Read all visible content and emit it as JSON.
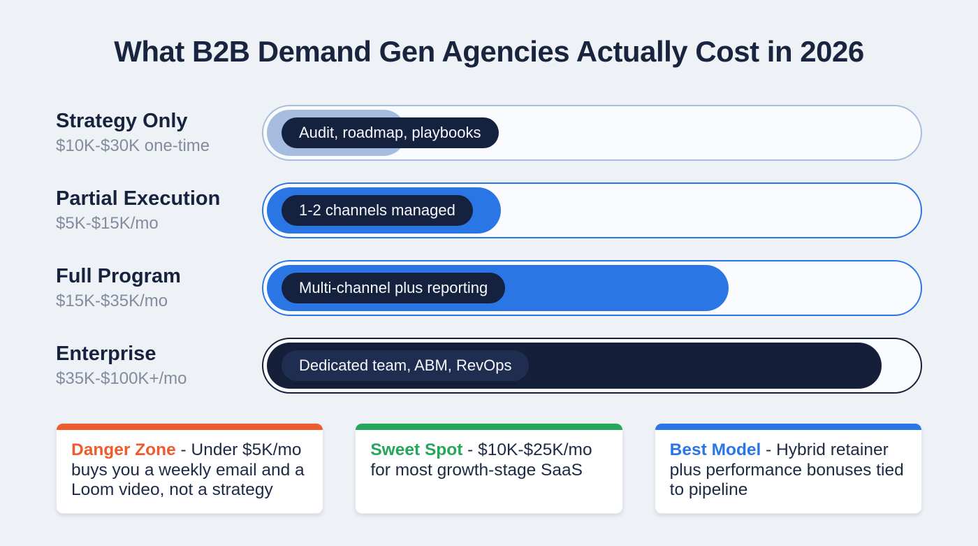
{
  "title": "What B2B Demand Gen Agencies Actually Cost in 2026",
  "chart_data": {
    "type": "bar",
    "orientation": "horizontal",
    "title": "What B2B Demand Gen Agencies Actually Cost in 2026",
    "categories": [
      "Strategy Only",
      "Partial Execution",
      "Full Program",
      "Enterprise"
    ],
    "price_ranges": [
      "$10K-$30K one-time",
      "$5K-$15K/mo",
      "$15K-$35K/mo",
      "$35K-$100K+/mo"
    ],
    "bar_labels": [
      "Audit, roadmap, playbooks",
      "1-2 channels managed",
      "Multi-channel plus reporting",
      "Dedicated team, ABM, RevOps"
    ],
    "values_pct_of_track": [
      21.5,
      36,
      71,
      94.5
    ],
    "grid": false,
    "legend": false
  },
  "rows": [
    {
      "name": "Strategy Only",
      "price": "$10K-$30K one-time",
      "tag": "Audit, roadmap, playbooks",
      "fill_pct": 21.5,
      "fill_color": "#a6bddf",
      "track_border": "#a8bddd",
      "pill_color": "#14223f"
    },
    {
      "name": "Partial Execution",
      "price": "$5K-$15K/mo",
      "tag": "1-2 channels managed",
      "fill_pct": 36,
      "fill_color": "#2b76e5",
      "track_border": "#2b76e5",
      "pill_color": "#14223f"
    },
    {
      "name": "Full Program",
      "price": "$15K-$35K/mo",
      "tag": "Multi-channel plus reporting",
      "fill_pct": 71,
      "fill_color": "#2b76e5",
      "track_border": "#2b76e5",
      "pill_color": "#14223f"
    },
    {
      "name": "Enterprise",
      "price": "$35K-$100K+/mo",
      "tag": "Dedicated team, ABM, RevOps",
      "fill_pct": 94.5,
      "fill_color": "#151f3a",
      "track_border": "#151f3a",
      "pill_color": "#1f2d50"
    }
  ],
  "cards": [
    {
      "keyword": "Danger Zone",
      "text": " - Under $5K/mo buys you a weekly email and a Loom video, not a strategy",
      "accent_color": "#ee5b2d"
    },
    {
      "keyword": "Sweet Spot",
      "text": " - $10K-$25K/mo for most growth-stage SaaS",
      "accent_color": "#25a65b"
    },
    {
      "keyword": "Best Model",
      "text": " - Hybrid retainer plus performance bonuses tied to pipeline",
      "accent_color": "#2b76e5"
    }
  ]
}
